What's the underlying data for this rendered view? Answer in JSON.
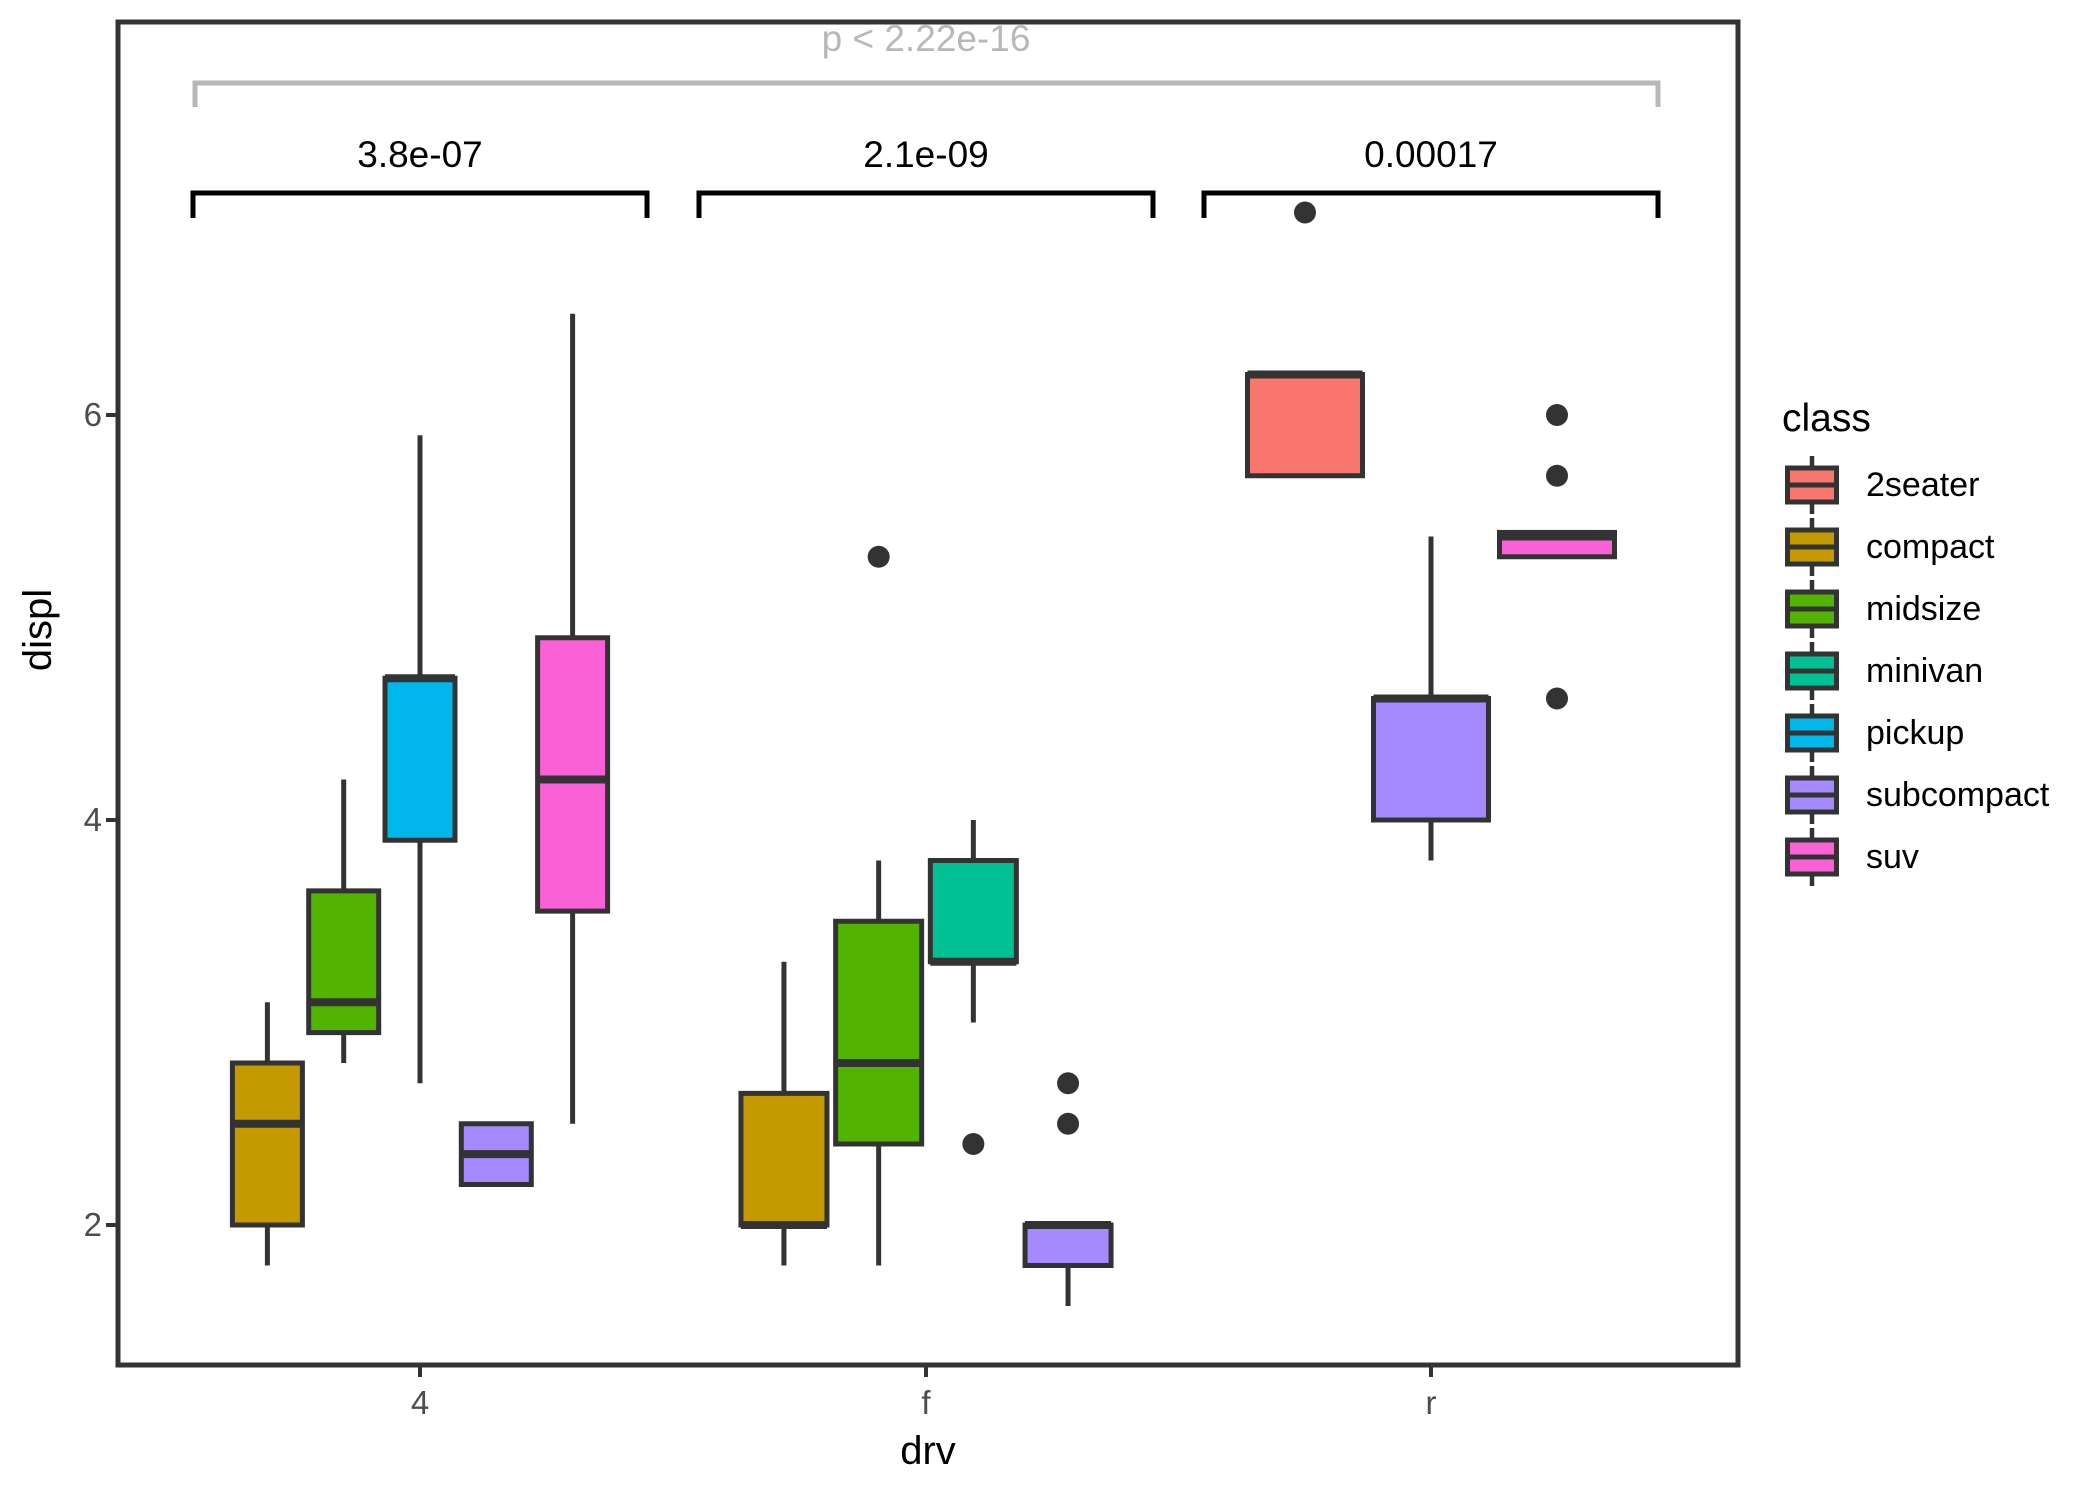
{
  "figure": {
    "kind": "grouped-boxplot",
    "background": "#ffffff",
    "panel_border_color": "#333333"
  },
  "annotations": {
    "global": {
      "label": "p < 2.22e-16",
      "color": "#b8b8b8"
    },
    "groups": [
      {
        "x": "4",
        "label": "3.8e-07"
      },
      {
        "x": "f",
        "label": "2.1e-09"
      },
      {
        "x": "r",
        "label": "0.00017"
      }
    ]
  },
  "axes": {
    "x": {
      "title": "drv",
      "ticks": [
        "4",
        "f",
        "r"
      ]
    },
    "y": {
      "title": "displ",
      "ticks": [
        "2",
        "4",
        "6"
      ],
      "tick_values": [
        2,
        4,
        6
      ]
    }
  },
  "legend": {
    "title": "class",
    "items": [
      {
        "label": "2seater",
        "color": "#F8766D"
      },
      {
        "label": "compact",
        "color": "#C49A00"
      },
      {
        "label": "midsize",
        "color": "#53B400"
      },
      {
        "label": "minivan",
        "color": "#00C094"
      },
      {
        "label": "pickup",
        "color": "#00B6EB"
      },
      {
        "label": "subcompact",
        "color": "#A58AFF"
      },
      {
        "label": "suv",
        "color": "#FB61D7"
      }
    ]
  },
  "chart_data": {
    "type": "boxplot",
    "title": "",
    "xlabel": "drv",
    "ylabel": "displ",
    "x_categories": [
      "4",
      "f",
      "r"
    ],
    "ylim": [
      1.3,
      8.0
    ],
    "y_axis_ticks": [
      2,
      4,
      6
    ],
    "grid": false,
    "legend_title": "class",
    "legend_position": "right",
    "significance": {
      "global": "p < 2.22e-16",
      "per_group": {
        "4": "3.8e-07",
        "f": "2.1e-09",
        "r": "0.00017"
      }
    },
    "groups": [
      {
        "drv": "4",
        "boxes": [
          {
            "class": "compact",
            "color": "#C49A00",
            "whisker_low": 1.8,
            "q1": 2.0,
            "median": 2.5,
            "q3": 2.8,
            "whisker_high": 3.1,
            "outliers": []
          },
          {
            "class": "midsize",
            "color": "#53B400",
            "whisker_low": 2.8,
            "q1": 2.95,
            "median": 3.1,
            "q3": 3.65,
            "whisker_high": 4.2,
            "outliers": []
          },
          {
            "class": "pickup",
            "color": "#00B6EB",
            "whisker_low": 2.7,
            "q1": 3.9,
            "median": 4.7,
            "q3": 4.7,
            "whisker_high": 5.9,
            "outliers": []
          },
          {
            "class": "subcompact",
            "color": "#A58AFF",
            "whisker_low": 2.2,
            "q1": 2.2,
            "median": 2.35,
            "q3": 2.5,
            "whisker_high": 2.5,
            "outliers": []
          },
          {
            "class": "suv",
            "color": "#FB61D7",
            "whisker_low": 2.5,
            "q1": 3.55,
            "median": 4.2,
            "q3": 4.9,
            "whisker_high": 6.5,
            "outliers": []
          }
        ]
      },
      {
        "drv": "f",
        "boxes": [
          {
            "class": "compact",
            "color": "#C49A00",
            "whisker_low": 1.8,
            "q1": 2.0,
            "median": 2.0,
            "q3": 2.65,
            "whisker_high": 3.3,
            "outliers": []
          },
          {
            "class": "midsize",
            "color": "#53B400",
            "whisker_low": 1.8,
            "q1": 2.4,
            "median": 2.8,
            "q3": 3.5,
            "whisker_high": 3.8,
            "outliers": [
              5.3
            ]
          },
          {
            "class": "minivan",
            "color": "#00C094",
            "whisker_low": 3.0,
            "q1": 3.3,
            "median": 3.3,
            "q3": 3.8,
            "whisker_high": 4.0,
            "outliers": [
              2.4
            ]
          },
          {
            "class": "subcompact",
            "color": "#A58AFF",
            "whisker_low": 1.6,
            "q1": 1.8,
            "median": 2.0,
            "q3": 2.0,
            "whisker_high": 2.0,
            "outliers": [
              2.5,
              2.7
            ]
          }
        ]
      },
      {
        "drv": "r",
        "boxes": [
          {
            "class": "2seater",
            "color": "#F8766D",
            "whisker_low": 5.7,
            "q1": 5.7,
            "median": 6.2,
            "q3": 6.2,
            "whisker_high": 6.2,
            "outliers": [
              7.0
            ]
          },
          {
            "class": "subcompact",
            "color": "#A58AFF",
            "whisker_low": 3.8,
            "q1": 4.0,
            "median": 4.6,
            "q3": 4.6,
            "whisker_high": 5.4,
            "outliers": []
          },
          {
            "class": "suv",
            "color": "#FB61D7",
            "whisker_low": 5.3,
            "q1": 5.3,
            "median": 5.4,
            "q3": 5.42,
            "whisker_high": 5.42,
            "outliers": [
              4.6,
              5.7,
              6.0
            ]
          }
        ]
      }
    ]
  }
}
